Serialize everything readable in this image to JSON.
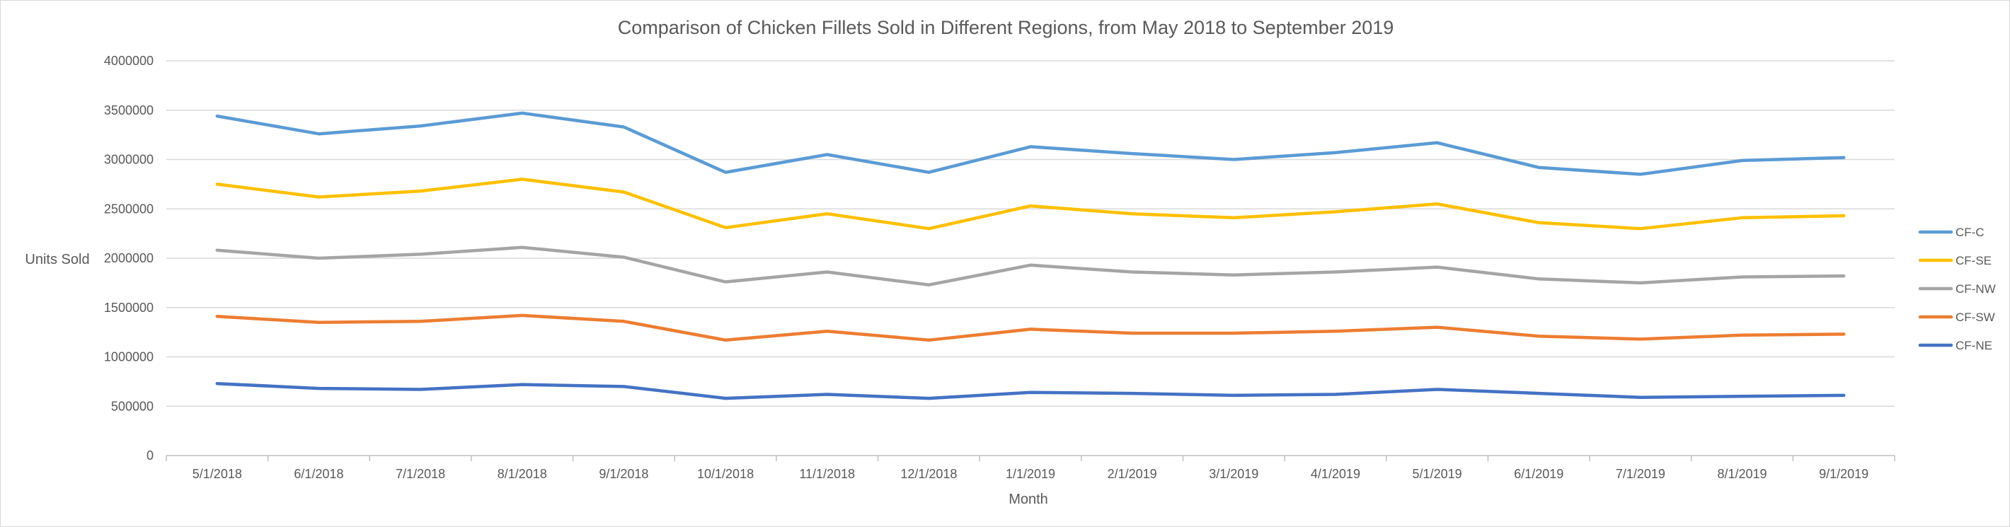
{
  "chart_data": {
    "type": "line",
    "title": "Comparison of Chicken Fillets Sold in Different Regions, from May 2018 to September 2019",
    "xlabel": "Month",
    "ylabel": "Units Sold",
    "ylim": [
      0,
      4000000
    ],
    "yticks": [
      0,
      500000,
      1000000,
      1500000,
      2000000,
      2500000,
      3000000,
      3500000,
      4000000
    ],
    "grid": true,
    "legend_position": "right",
    "categories": [
      "5/1/2018",
      "6/1/2018",
      "7/1/2018",
      "8/1/2018",
      "9/1/2018",
      "10/1/2018",
      "11/1/2018",
      "12/1/2018",
      "1/1/2019",
      "2/1/2019",
      "3/1/2019",
      "4/1/2019",
      "5/1/2019",
      "6/1/2019",
      "7/1/2019",
      "8/1/2019",
      "9/1/2019"
    ],
    "series": [
      {
        "name": "CF-C",
        "color": "#5B9BD5",
        "values": [
          3440000,
          3260000,
          3340000,
          3470000,
          3330000,
          2870000,
          3050000,
          2870000,
          3130000,
          3060000,
          3000000,
          3070000,
          3170000,
          2920000,
          2850000,
          2990000,
          3020000
        ]
      },
      {
        "name": "CF-SE",
        "color": "#FFC000",
        "values": [
          2750000,
          2620000,
          2680000,
          2800000,
          2670000,
          2310000,
          2450000,
          2300000,
          2530000,
          2450000,
          2410000,
          2470000,
          2550000,
          2360000,
          2300000,
          2410000,
          2430000
        ]
      },
      {
        "name": "CF-NW",
        "color": "#A5A5A5",
        "values": [
          2080000,
          2000000,
          2040000,
          2110000,
          2010000,
          1760000,
          1860000,
          1730000,
          1930000,
          1860000,
          1830000,
          1860000,
          1910000,
          1790000,
          1750000,
          1810000,
          1820000
        ]
      },
      {
        "name": "CF-SW",
        "color": "#ED7D31",
        "values": [
          1410000,
          1350000,
          1360000,
          1420000,
          1360000,
          1170000,
          1260000,
          1170000,
          1280000,
          1240000,
          1240000,
          1260000,
          1300000,
          1210000,
          1180000,
          1220000,
          1230000
        ]
      },
      {
        "name": "CF-NE",
        "color": "#4472C4",
        "values": [
          730000,
          680000,
          670000,
          720000,
          700000,
          580000,
          620000,
          580000,
          640000,
          630000,
          610000,
          620000,
          670000,
          630000,
          590000,
          600000,
          610000
        ]
      }
    ]
  }
}
